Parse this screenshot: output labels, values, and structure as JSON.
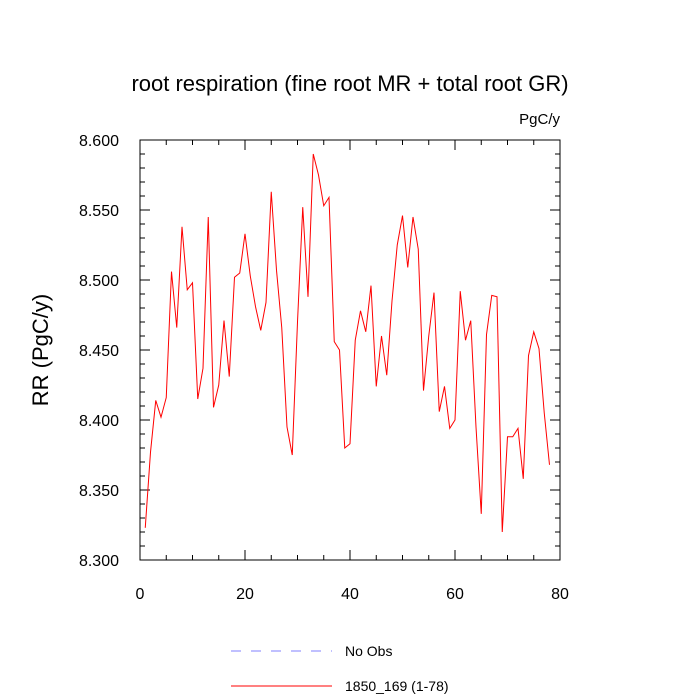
{
  "chart_data": {
    "type": "line",
    "title": "root respiration (fine root MR + total root GR)",
    "units": "PgC/y",
    "xlabel": "",
    "ylabel": "RR  (PgC/y)",
    "xlim": [
      0,
      80
    ],
    "ylim": [
      8.3,
      8.6
    ],
    "x_ticks": [
      0,
      20,
      40,
      60,
      80
    ],
    "x_tick_labels": [
      "0",
      "20",
      "40",
      "60",
      "80"
    ],
    "y_ticks": [
      8.3,
      8.35,
      8.4,
      8.45,
      8.5,
      8.55,
      8.6
    ],
    "y_tick_labels": [
      "8.300",
      "8.350",
      "8.400",
      "8.450",
      "8.500",
      "8.550",
      "8.600"
    ],
    "grid": false,
    "legend_position": "bottom",
    "series": [
      {
        "name": "1850_169 (1-78)",
        "color": "#ff0000",
        "style": "solid",
        "x": [
          1,
          2,
          3,
          4,
          5,
          6,
          7,
          8,
          9,
          10,
          11,
          12,
          13,
          14,
          15,
          16,
          17,
          18,
          19,
          20,
          21,
          22,
          23,
          24,
          25,
          26,
          27,
          28,
          29,
          30,
          31,
          32,
          33,
          34,
          35,
          36,
          37,
          38,
          39,
          40,
          41,
          42,
          43,
          44,
          45,
          46,
          47,
          48,
          49,
          50,
          51,
          52,
          53,
          54,
          55,
          56,
          57,
          58,
          59,
          60,
          61,
          62,
          63,
          64,
          65,
          66,
          67,
          68,
          69,
          70,
          71,
          72,
          73,
          74,
          75,
          76,
          77,
          78
        ],
        "values": [
          8.323,
          8.377,
          8.414,
          8.402,
          8.416,
          8.506,
          8.466,
          8.538,
          8.493,
          8.498,
          8.415,
          8.437,
          8.545,
          8.409,
          8.425,
          8.471,
          8.431,
          8.502,
          8.505,
          8.533,
          8.503,
          8.481,
          8.464,
          8.484,
          8.563,
          8.507,
          8.466,
          8.395,
          8.375,
          8.47,
          8.552,
          8.488,
          8.59,
          8.575,
          8.553,
          8.559,
          8.456,
          8.45,
          8.38,
          8.383,
          8.457,
          8.478,
          8.463,
          8.496,
          8.424,
          8.46,
          8.432,
          8.485,
          8.525,
          8.546,
          8.509,
          8.545,
          8.522,
          8.421,
          8.46,
          8.491,
          8.406,
          8.424,
          8.394,
          8.4,
          8.492,
          8.457,
          8.471,
          8.395,
          8.333,
          8.461,
          8.489,
          8.488,
          8.32,
          8.388,
          8.388,
          8.394,
          8.358,
          8.446,
          8.463,
          8.451,
          8.405,
          8.368
        ]
      },
      {
        "name": "No Obs",
        "color": "#8080ff",
        "style": "dashed",
        "x": [],
        "values": []
      }
    ]
  }
}
